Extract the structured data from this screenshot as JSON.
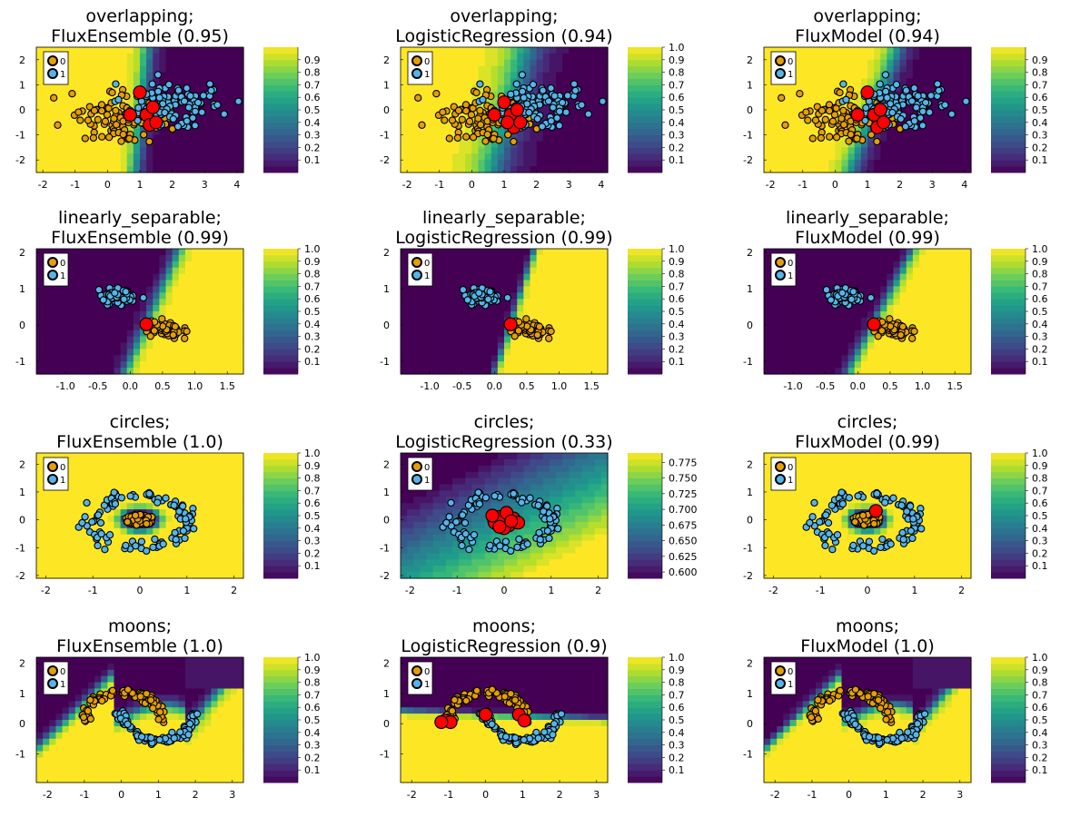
{
  "palette": {
    "class0": "#e69f00",
    "class1": "#56b4e9",
    "misclassified": "#ff0000",
    "viridis": [
      "#440154",
      "#482878",
      "#3e4a89",
      "#31688e",
      "#26838f",
      "#1f9d8a",
      "#35b779",
      "#6cce5a",
      "#b6de2b",
      "#fde725"
    ]
  },
  "chart_data": [
    {
      "type": "heatmap",
      "dataset": "overlapping",
      "model": "FluxEnsemble",
      "title": "overlapping;",
      "subtitle": "FluxEnsemble (0.95)",
      "accuracy": 0.95,
      "xlim": [
        -2.2,
        4.2
      ],
      "ylim": [
        -2.5,
        2.5
      ],
      "xticks": [
        "-2",
        "-1",
        "0",
        "1",
        "2",
        "3",
        "4"
      ],
      "yticks": [
        "2",
        "1",
        "0",
        "-1",
        "-2"
      ],
      "legend": [
        "0",
        "1"
      ],
      "colorbar_ticks": [
        "0.1",
        "0.2",
        "0.3",
        "0.4",
        "0.5",
        "0.6",
        "0.7",
        "0.8",
        "0.9"
      ],
      "clim": [
        0,
        1
      ],
      "boundary": {
        "kind": "linear",
        "a": -1.0,
        "b": 0.08,
        "c": 1.05,
        "soft": 0.15
      },
      "points": {
        "kind": "blobs",
        "c0": [
          0.3,
          -0.3
        ],
        "c1": [
          1.9,
          0.1
        ],
        "sx": 0.75,
        "sy": 0.45,
        "n": 95,
        "seed": 3
      },
      "misclassified": [
        [
          0.7,
          -0.2
        ],
        [
          1.0,
          0.7
        ],
        [
          1.2,
          -0.2
        ],
        [
          1.4,
          0.1
        ],
        [
          1.3,
          -0.6
        ],
        [
          1.5,
          -0.5
        ]
      ]
    },
    {
      "type": "heatmap",
      "dataset": "overlapping",
      "model": "LogisticRegression",
      "title": "overlapping;",
      "subtitle": "LogisticRegression (0.94)",
      "accuracy": 0.94,
      "xlim": [
        -2.2,
        4.2
      ],
      "ylim": [
        -2.5,
        2.5
      ],
      "xticks": [
        "-2",
        "-1",
        "0",
        "1",
        "2",
        "3",
        "4"
      ],
      "yticks": [
        "2",
        "1",
        "0",
        "-1",
        "-2"
      ],
      "legend": [
        "0",
        "1"
      ],
      "colorbar_ticks": [
        "0.1",
        "0.2",
        "0.3",
        "0.4",
        "0.5",
        "0.6",
        "0.7",
        "0.8",
        "0.9",
        "1.0"
      ],
      "clim": [
        0,
        1
      ],
      "boundary": {
        "kind": "linear",
        "a": -1.0,
        "b": 0.22,
        "c": 1.15,
        "soft": 0.35
      },
      "points": {
        "kind": "blobs",
        "c0": [
          0.3,
          -0.3
        ],
        "c1": [
          1.9,
          0.1
        ],
        "sx": 0.75,
        "sy": 0.45,
        "n": 95,
        "seed": 3
      },
      "misclassified": [
        [
          0.7,
          -0.2
        ],
        [
          1.0,
          0.3
        ],
        [
          1.2,
          -0.2
        ],
        [
          1.4,
          0.0
        ],
        [
          1.3,
          -0.7
        ],
        [
          1.5,
          -0.5
        ],
        [
          1.1,
          -0.5
        ]
      ]
    },
    {
      "type": "heatmap",
      "dataset": "overlapping",
      "model": "FluxModel",
      "title": "overlapping;",
      "subtitle": "FluxModel (0.94)",
      "accuracy": 0.94,
      "xlim": [
        -2.2,
        4.2
      ],
      "ylim": [
        -2.5,
        2.5
      ],
      "xticks": [
        "-2",
        "-1",
        "0",
        "1",
        "2",
        "3",
        "4"
      ],
      "yticks": [
        "2",
        "1",
        "0",
        "-1",
        "-2"
      ],
      "legend": [
        "0",
        "1"
      ],
      "colorbar_ticks": [
        "0.1",
        "0.2",
        "0.3",
        "0.4",
        "0.5",
        "0.6",
        "0.7",
        "0.8",
        "0.9"
      ],
      "clim": [
        0,
        1
      ],
      "boundary": {
        "kind": "linear",
        "a": -1.0,
        "b": 0.3,
        "c": 1.2,
        "soft": 0.2
      },
      "points": {
        "kind": "blobs",
        "c0": [
          0.3,
          -0.3
        ],
        "c1": [
          1.9,
          0.1
        ],
        "sx": 0.75,
        "sy": 0.45,
        "n": 95,
        "seed": 3
      },
      "misclassified": [
        [
          0.7,
          -0.2
        ],
        [
          1.0,
          0.7
        ],
        [
          1.2,
          -0.2
        ],
        [
          1.4,
          0.0
        ],
        [
          1.3,
          -0.7
        ],
        [
          1.5,
          -0.5
        ]
      ]
    },
    {
      "type": "heatmap",
      "dataset": "linearly_separable",
      "model": "FluxEnsemble",
      "title": "linearly_separable;",
      "subtitle": "FluxEnsemble (0.99)",
      "accuracy": 0.99,
      "xlim": [
        -1.45,
        1.75
      ],
      "ylim": [
        -1.35,
        2.1
      ],
      "xticks": [
        "-1.0",
        "-0.5",
        "0.0",
        "0.5",
        "1.0",
        "1.5"
      ],
      "yticks": [
        "2",
        "1",
        "0",
        "-1"
      ],
      "legend": [
        "0",
        "1"
      ],
      "colorbar_ticks": [
        "0.1",
        "0.2",
        "0.3",
        "0.4",
        "0.5",
        "0.6",
        "0.7",
        "0.8",
        "0.9",
        "1.0"
      ],
      "clim": [
        0,
        1
      ],
      "boundary": {
        "kind": "linear",
        "a": 1.0,
        "b": -0.25,
        "c": -0.24,
        "soft": 0.06
      },
      "points": {
        "kind": "blobs",
        "c0": [
          0.55,
          -0.1
        ],
        "c1": [
          -0.2,
          0.8
        ],
        "sx": 0.13,
        "sy": 0.1,
        "n": 60,
        "seed": 7
      },
      "misclassified": [
        [
          0.25,
          0.02
        ]
      ]
    },
    {
      "type": "heatmap",
      "dataset": "linearly_separable",
      "model": "LogisticRegression",
      "title": "linearly_separable;",
      "subtitle": "LogisticRegression (0.99)",
      "accuracy": 0.99,
      "xlim": [
        -1.45,
        1.75
      ],
      "ylim": [
        -1.35,
        2.1
      ],
      "xticks": [
        "-1.0",
        "-0.5",
        "0.0",
        "0.5",
        "1.0",
        "1.5"
      ],
      "yticks": [
        "2",
        "1",
        "0",
        "-1"
      ],
      "legend": [
        "0",
        "1"
      ],
      "colorbar_ticks": [
        "0.1",
        "0.2",
        "0.3",
        "0.4",
        "0.5",
        "0.6",
        "0.7",
        "0.8",
        "0.9",
        "1.0"
      ],
      "clim": [
        0,
        1
      ],
      "boundary": {
        "kind": "linear",
        "a": 1.0,
        "b": -0.18,
        "c": -0.25,
        "soft": 0.03
      },
      "points": {
        "kind": "blobs",
        "c0": [
          0.55,
          -0.1
        ],
        "c1": [
          -0.2,
          0.8
        ],
        "sx": 0.13,
        "sy": 0.1,
        "n": 60,
        "seed": 7
      },
      "misclassified": [
        [
          0.25,
          0.02
        ]
      ]
    },
    {
      "type": "heatmap",
      "dataset": "linearly_separable",
      "model": "FluxModel",
      "title": "linearly_separable;",
      "subtitle": "FluxModel (0.99)",
      "accuracy": 0.99,
      "xlim": [
        -1.45,
        1.75
      ],
      "ylim": [
        -1.35,
        2.1
      ],
      "xticks": [
        "-1.0",
        "-0.5",
        "0.0",
        "0.5",
        "1.0",
        "1.5"
      ],
      "yticks": [
        "2",
        "1",
        "0",
        "-1"
      ],
      "legend": [
        "0",
        "1"
      ],
      "colorbar_ticks": [
        "0.1",
        "0.2",
        "0.3",
        "0.4",
        "0.5",
        "0.6",
        "0.7",
        "0.8",
        "0.9",
        "1.0"
      ],
      "clim": [
        0,
        1
      ],
      "boundary": {
        "kind": "linear",
        "a": 1.0,
        "b": -0.3,
        "c": -0.24,
        "soft": 0.05
      },
      "points": {
        "kind": "blobs",
        "c0": [
          0.55,
          -0.1
        ],
        "c1": [
          -0.2,
          0.8
        ],
        "sx": 0.13,
        "sy": 0.1,
        "n": 60,
        "seed": 7
      },
      "misclassified": [
        [
          0.25,
          0.02
        ]
      ]
    },
    {
      "type": "heatmap",
      "dataset": "circles",
      "model": "FluxEnsemble",
      "title": "circles;",
      "subtitle": "FluxEnsemble (1.0)",
      "accuracy": 1.0,
      "xlim": [
        -2.2,
        2.2
      ],
      "ylim": [
        -2.1,
        2.4
      ],
      "xticks": [
        "-2",
        "-1",
        "0",
        "1",
        "2"
      ],
      "yticks": [
        "2",
        "1",
        "0",
        "-1",
        "-2"
      ],
      "legend": [
        "0",
        "1"
      ],
      "colorbar_ticks": [
        "0.1",
        "0.2",
        "0.3",
        "0.4",
        "0.5",
        "0.6",
        "0.7",
        "0.8",
        "0.9",
        "1.0"
      ],
      "clim": [
        0,
        1
      ],
      "boundary": {
        "kind": "radial",
        "r": 0.42,
        "soft": 0.06
      },
      "points": {
        "kind": "circles",
        "r0": 0.28,
        "r1": 1.05,
        "n": 100,
        "seed": 11
      },
      "misclassified": []
    },
    {
      "type": "heatmap",
      "dataset": "circles",
      "model": "LogisticRegression",
      "title": "circles;",
      "subtitle": "LogisticRegression (0.33)",
      "accuracy": 0.33,
      "xlim": [
        -2.2,
        2.2
      ],
      "ylim": [
        -2.1,
        2.4
      ],
      "xticks": [
        "-2",
        "-1",
        "0",
        "1",
        "2"
      ],
      "yticks": [
        "2",
        "1",
        "0",
        "-1",
        "-2"
      ],
      "legend": [
        "0",
        "1"
      ],
      "colorbar_ticks": [
        "0.600",
        "0.625",
        "0.650",
        "0.675",
        "0.700",
        "0.725",
        "0.750",
        "0.775"
      ],
      "clim": [
        0.59,
        0.79
      ],
      "boundary": {
        "kind": "plane",
        "base": 0.69,
        "gx": 0.02,
        "gy": 0.04
      },
      "points": {
        "kind": "circles",
        "r0": 0.28,
        "r1": 1.05,
        "n": 100,
        "seed": 11
      },
      "misclassified": [
        [
          -0.2,
          -0.1
        ],
        [
          -0.1,
          0.1
        ],
        [
          0.1,
          -0.2
        ],
        [
          0.2,
          0.05
        ],
        [
          0.0,
          -0.3
        ],
        [
          0.3,
          -0.1
        ],
        [
          -0.25,
          0.15
        ],
        [
          0.05,
          0.25
        ],
        [
          0.15,
          -0.05
        ],
        [
          -0.1,
          -0.25
        ]
      ]
    },
    {
      "type": "heatmap",
      "dataset": "circles",
      "model": "FluxModel",
      "title": "circles;",
      "subtitle": "FluxModel (0.99)",
      "accuracy": 0.99,
      "xlim": [
        -2.2,
        2.2
      ],
      "ylim": [
        -2.1,
        2.4
      ],
      "xticks": [
        "-2",
        "-1",
        "0",
        "1",
        "2"
      ],
      "yticks": [
        "2",
        "1",
        "0",
        "-1",
        "-2"
      ],
      "legend": [
        "0",
        "1"
      ],
      "colorbar_ticks": [
        "0.1",
        "0.2",
        "0.3",
        "0.4",
        "0.5",
        "0.6",
        "0.7",
        "0.8",
        "0.9",
        "1.0"
      ],
      "clim": [
        0,
        1
      ],
      "boundary": {
        "kind": "radial",
        "r": 0.4,
        "soft": 0.06
      },
      "points": {
        "kind": "circles",
        "r0": 0.28,
        "r1": 1.05,
        "n": 100,
        "seed": 11
      },
      "misclassified": [
        [
          0.18,
          0.32
        ]
      ]
    },
    {
      "type": "heatmap",
      "dataset": "moons",
      "model": "FluxEnsemble",
      "title": "moons;",
      "subtitle": "FluxEnsemble (1.0)",
      "accuracy": 1.0,
      "xlim": [
        -2.3,
        3.3
      ],
      "ylim": [
        -1.95,
        2.2
      ],
      "xticks": [
        "-2",
        "-1",
        "0",
        "1",
        "2",
        "3"
      ],
      "yticks": [
        "2",
        "1",
        "0",
        "-1"
      ],
      "legend": [
        "0",
        "1"
      ],
      "colorbar_ticks": [
        "0.1",
        "0.2",
        "0.3",
        "0.4",
        "0.5",
        "0.6",
        "0.7",
        "0.8",
        "0.9",
        "1.0"
      ],
      "clim": [
        0,
        1
      ],
      "boundary": {
        "kind": "moons",
        "offset": 0.3,
        "soft": 0.12
      },
      "points": {
        "kind": "moons",
        "n": 100,
        "seed": 5
      },
      "misclassified": []
    },
    {
      "type": "heatmap",
      "dataset": "moons",
      "model": "LogisticRegression",
      "title": "moons;",
      "subtitle": "LogisticRegression (0.9)",
      "accuracy": 0.9,
      "xlim": [
        -2.3,
        3.3
      ],
      "ylim": [
        -1.95,
        2.2
      ],
      "xticks": [
        "-2",
        "-1",
        "0",
        "1",
        "2",
        "3"
      ],
      "yticks": [
        "2",
        "1",
        "0",
        "-1"
      ],
      "legend": [
        "0",
        "1"
      ],
      "colorbar_ticks": [
        "0.1",
        "0.2",
        "0.3",
        "0.4",
        "0.5",
        "0.6",
        "0.7",
        "0.8",
        "0.9",
        "1.0"
      ],
      "clim": [
        0,
        1
      ],
      "boundary": {
        "kind": "linear",
        "a": -0.05,
        "b": -1.0,
        "c": 0.3,
        "soft": 0.05
      },
      "points": {
        "kind": "moons",
        "n": 100,
        "seed": 5
      },
      "misclassified": [
        [
          -1.1,
          0.1
        ],
        [
          -0.95,
          0.05
        ],
        [
          0.0,
          0.3
        ],
        [
          0.9,
          0.3
        ],
        [
          1.05,
          0.1
        ],
        [
          -1.2,
          0.05
        ]
      ]
    },
    {
      "type": "heatmap",
      "dataset": "moons",
      "model": "FluxModel",
      "title": "moons;",
      "subtitle": "FluxModel (1.0)",
      "accuracy": 1.0,
      "xlim": [
        -2.3,
        3.3
      ],
      "ylim": [
        -1.95,
        2.2
      ],
      "xticks": [
        "-2",
        "-1",
        "0",
        "1",
        "2",
        "3"
      ],
      "yticks": [
        "2",
        "1",
        "0",
        "-1"
      ],
      "legend": [
        "0",
        "1"
      ],
      "colorbar_ticks": [
        "0.1",
        "0.2",
        "0.3",
        "0.4",
        "0.5",
        "0.6",
        "0.7",
        "0.8",
        "0.9",
        "1.0"
      ],
      "clim": [
        0,
        1
      ],
      "boundary": {
        "kind": "moons",
        "offset": 0.25,
        "soft": 0.1
      },
      "points": {
        "kind": "moons",
        "n": 100,
        "seed": 5
      },
      "misclassified": []
    }
  ]
}
